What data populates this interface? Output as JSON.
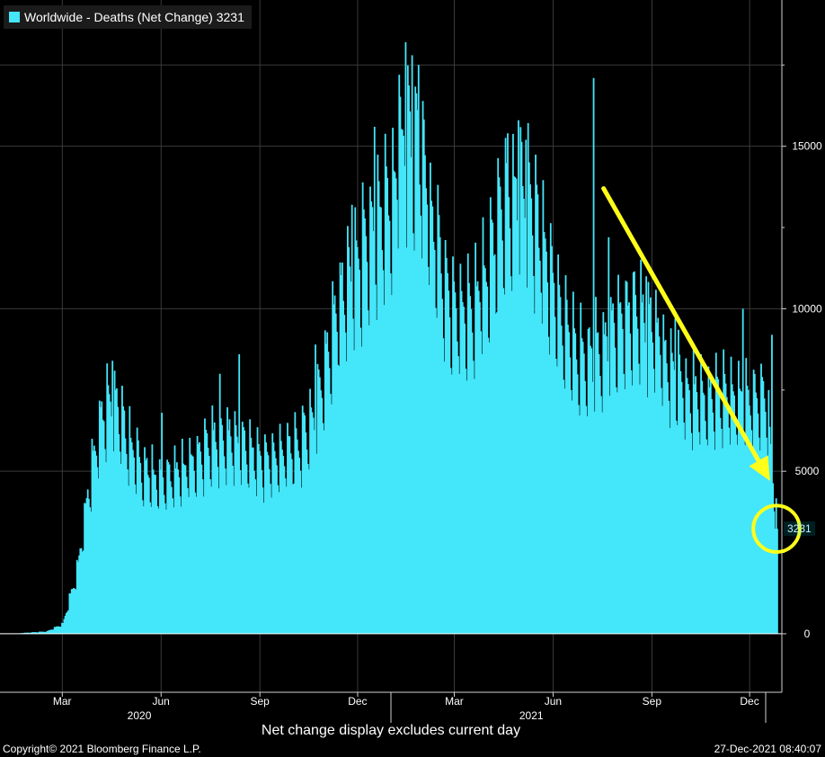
{
  "legend": {
    "swatch_color": "#44e6fa",
    "label": "Worldwide - Deaths (Net Change) 3231"
  },
  "chart_data": {
    "type": "bar",
    "title": "",
    "xlabel": "",
    "ylabel": "",
    "ylim": [
      -1800,
      19500
    ],
    "y_ticks": [
      0,
      5000,
      10000,
      15000
    ],
    "y_tick_labels": [
      "0",
      "5000",
      "10000",
      "15000"
    ],
    "x_month_ticks": [
      {
        "date": "2020-03-01",
        "label": "Mar"
      },
      {
        "date": "2020-06-01",
        "label": "Jun"
      },
      {
        "date": "2020-09-01",
        "label": "Sep"
      },
      {
        "date": "2020-12-01",
        "label": "Dec"
      },
      {
        "date": "2021-03-01",
        "label": "Mar"
      },
      {
        "date": "2021-06-01",
        "label": "Jun"
      },
      {
        "date": "2021-09-01",
        "label": "Sep"
      },
      {
        "date": "2021-12-01",
        "label": "Dec"
      }
    ],
    "x_year_labels": [
      {
        "date": "2020-07-16",
        "label": "2020"
      },
      {
        "date": "2021-07-16",
        "label": "2021"
      }
    ],
    "x_range": [
      "2020-01-03",
      "2021-12-31"
    ],
    "series": [
      {
        "name": "Worldwide - Deaths (Net Change)",
        "color": "#44e6fa",
        "start_date": "2020-01-22",
        "end_date": "2021-12-26",
        "weekly_anchors": [
          [
            "2020-01-22",
            20
          ],
          [
            "2020-02-15",
            70
          ],
          [
            "2020-03-01",
            300
          ],
          [
            "2020-03-15",
            2000
          ],
          [
            "2020-03-25",
            4500
          ],
          [
            "2020-04-05",
            6500
          ],
          [
            "2020-04-15",
            7200
          ],
          [
            "2020-05-01",
            5800
          ],
          [
            "2020-05-15",
            4900
          ],
          [
            "2020-06-01",
            4600
          ],
          [
            "2020-06-15",
            4800
          ],
          [
            "2020-07-01",
            5200
          ],
          [
            "2020-07-20",
            5800
          ],
          [
            "2020-08-05",
            5900
          ],
          [
            "2020-08-20",
            5500
          ],
          [
            "2020-09-05",
            5200
          ],
          [
            "2020-09-20",
            5400
          ],
          [
            "2020-10-05",
            5600
          ],
          [
            "2020-10-20",
            6500
          ],
          [
            "2020-11-01",
            8200
          ],
          [
            "2020-11-15",
            10200
          ],
          [
            "2020-12-01",
            11200
          ],
          [
            "2020-12-15",
            12000
          ],
          [
            "2021-01-01",
            13000
          ],
          [
            "2021-01-15",
            15000
          ],
          [
            "2021-01-28",
            14500
          ],
          [
            "2021-02-10",
            12000
          ],
          [
            "2021-02-25",
            9800
          ],
          [
            "2021-03-15",
            9600
          ],
          [
            "2021-04-01",
            11000
          ],
          [
            "2021-04-15",
            12800
          ],
          [
            "2021-05-01",
            13400
          ],
          [
            "2021-05-15",
            12500
          ],
          [
            "2021-06-01",
            10200
          ],
          [
            "2021-06-15",
            8800
          ],
          [
            "2021-07-01",
            8200
          ],
          [
            "2021-07-15",
            8600
          ],
          [
            "2021-08-01",
            9300
          ],
          [
            "2021-08-15",
            9800
          ],
          [
            "2021-09-01",
            9200
          ],
          [
            "2021-09-15",
            8100
          ],
          [
            "2021-10-01",
            7500
          ],
          [
            "2021-10-15",
            7000
          ],
          [
            "2021-11-01",
            7200
          ],
          [
            "2021-11-15",
            7100
          ],
          [
            "2021-12-01",
            7000
          ],
          [
            "2021-12-15",
            7200
          ],
          [
            "2021-12-26",
            3231
          ]
        ],
        "weekly_pattern": [
          1.1,
          1.08,
          1.02,
          0.96,
          0.86,
          0.8,
          1.18
        ],
        "spikes": [
          [
            "2020-04-16",
            8400
          ],
          [
            "2020-06-01",
            6800
          ],
          [
            "2020-07-25",
            8000
          ],
          [
            "2020-08-12",
            8600
          ],
          [
            "2020-10-22",
            8900
          ],
          [
            "2020-11-25",
            13200
          ],
          [
            "2020-12-16",
            15600
          ],
          [
            "2021-01-08",
            17200
          ],
          [
            "2021-01-14",
            18200
          ],
          [
            "2021-01-20",
            17800
          ],
          [
            "2021-01-26",
            17500
          ],
          [
            "2021-04-19",
            15400
          ],
          [
            "2021-04-29",
            15800
          ],
          [
            "2021-05-06",
            15200
          ],
          [
            "2021-07-08",
            17100
          ],
          [
            "2021-07-22",
            12200
          ],
          [
            "2021-08-26",
            11000
          ],
          [
            "2021-09-22",
            9700
          ],
          [
            "2021-11-24",
            10000
          ],
          [
            "2021-12-21",
            9200
          ]
        ],
        "last_value": 3231
      }
    ]
  },
  "annotations": {
    "arrow_color": "#ffff1a",
    "arrow_start": {
      "date": "2021-07-18",
      "value": 13700
    },
    "arrow_end": {
      "date": "2021-12-20",
      "value": 4700
    },
    "circle_center": {
      "date": "2021-12-26",
      "value": 3231
    },
    "circle_radius_days": 9
  },
  "last_value_badge": "3231",
  "footer": {
    "note": "Net change display excludes current day",
    "copyright": "Copyright© 2021 Bloomberg Finance L.P.",
    "timestamp": "27-Dec-2021 08:40:07"
  }
}
